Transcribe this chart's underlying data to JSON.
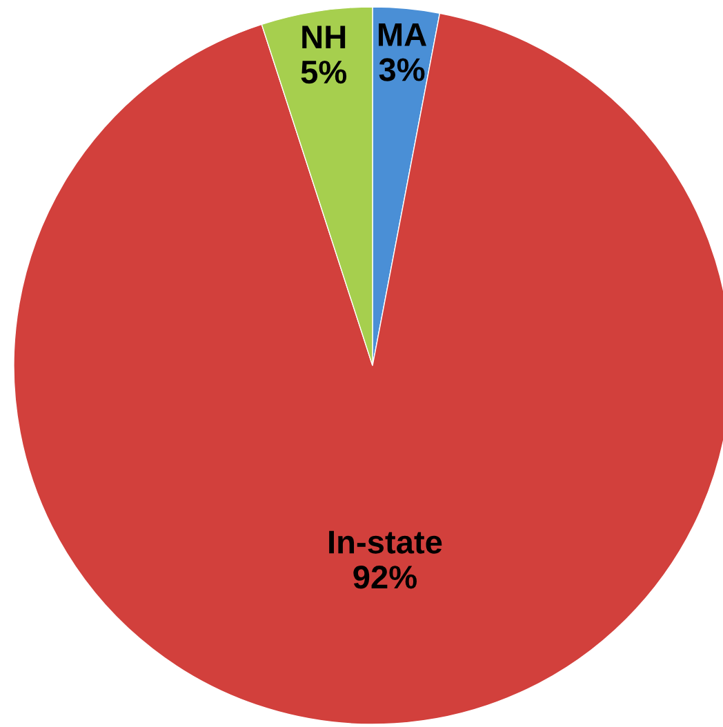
{
  "chart_data": {
    "type": "pie",
    "categories": [
      "MA",
      "In-state",
      "NH"
    ],
    "values": [
      3,
      92,
      5
    ],
    "value_labels": [
      "3%",
      "92%",
      "5%"
    ],
    "colors": [
      "#4a8fd6",
      "#d2403c",
      "#a6cf4e"
    ]
  }
}
